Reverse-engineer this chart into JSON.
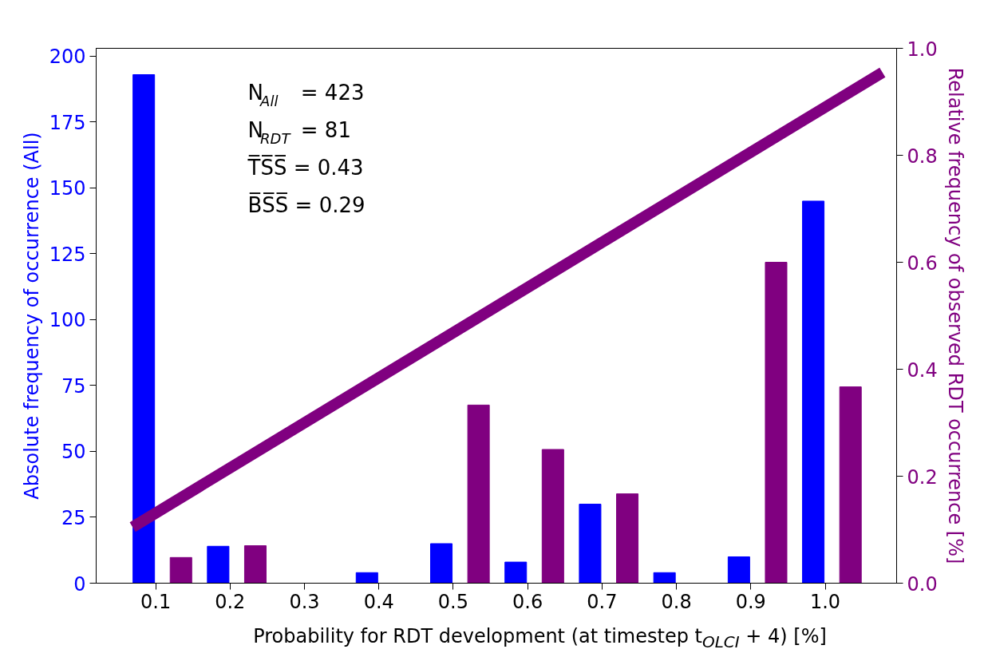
{
  "chart_data": {
    "type": "bar",
    "xlabel": "Probability for RDT development (at timestep t$_{OLCI}$ + 4) [%]",
    "ylabel": "Absolute frequency of occurrence (All)",
    "y2label": "Relative frequency of observed RDT occurrence [%]",
    "xlim": [
      0.02,
      1.096
    ],
    "xticks": [
      0.1,
      0.2,
      0.3,
      0.4,
      0.5,
      0.6,
      0.7,
      0.8,
      0.9,
      {
        "value": 1.0,
        "label": "1.0"
      }
    ],
    "ylim": [
      0,
      203
    ],
    "yticks": [
      0,
      25,
      50,
      75,
      100,
      125,
      150,
      175,
      200
    ],
    "y2lim": [
      0,
      1.0
    ],
    "y2ticks": [
      {
        "value": 0,
        "label": "0.0"
      },
      0.2,
      0.4,
      0.6,
      0.8,
      {
        "value": 1.0,
        "label": "1.0"
      }
    ],
    "grid": false,
    "series": [
      {
        "color": "#0000ff",
        "x": [
          0.084,
          0.184,
          0.284,
          0.384,
          0.484,
          0.584,
          0.684,
          0.784,
          0.884,
          0.984
        ],
        "values": [
          193,
          14,
          0,
          4,
          15,
          8,
          30,
          4,
          10,
          145
        ]
      },
      {
        "axis": "y2",
        "color": "#800080",
        "x": [
          0.134,
          0.234,
          0.334,
          0.434,
          0.534,
          0.634,
          0.734,
          0.834,
          0.934,
          1.034
        ],
        "values": [
          0.048,
          0.07,
          0,
          0,
          0.333,
          0.25,
          0.167,
          0,
          0.6,
          0.367
        ]
      },
      {
        "type": "line",
        "axis": "y2",
        "color": "#800080",
        "x": [
          0.069,
          1.077
        ],
        "values": [
          0.105,
          0.955
        ]
      }
    ],
    "annotations": [
      "N$_{All}$ =   423",
      "N$_{RDT}$ =     81",
      "T̅S̅S̅ =  0.43",
      "B̅S̅S̅ =  0.29"
    ]
  }
}
